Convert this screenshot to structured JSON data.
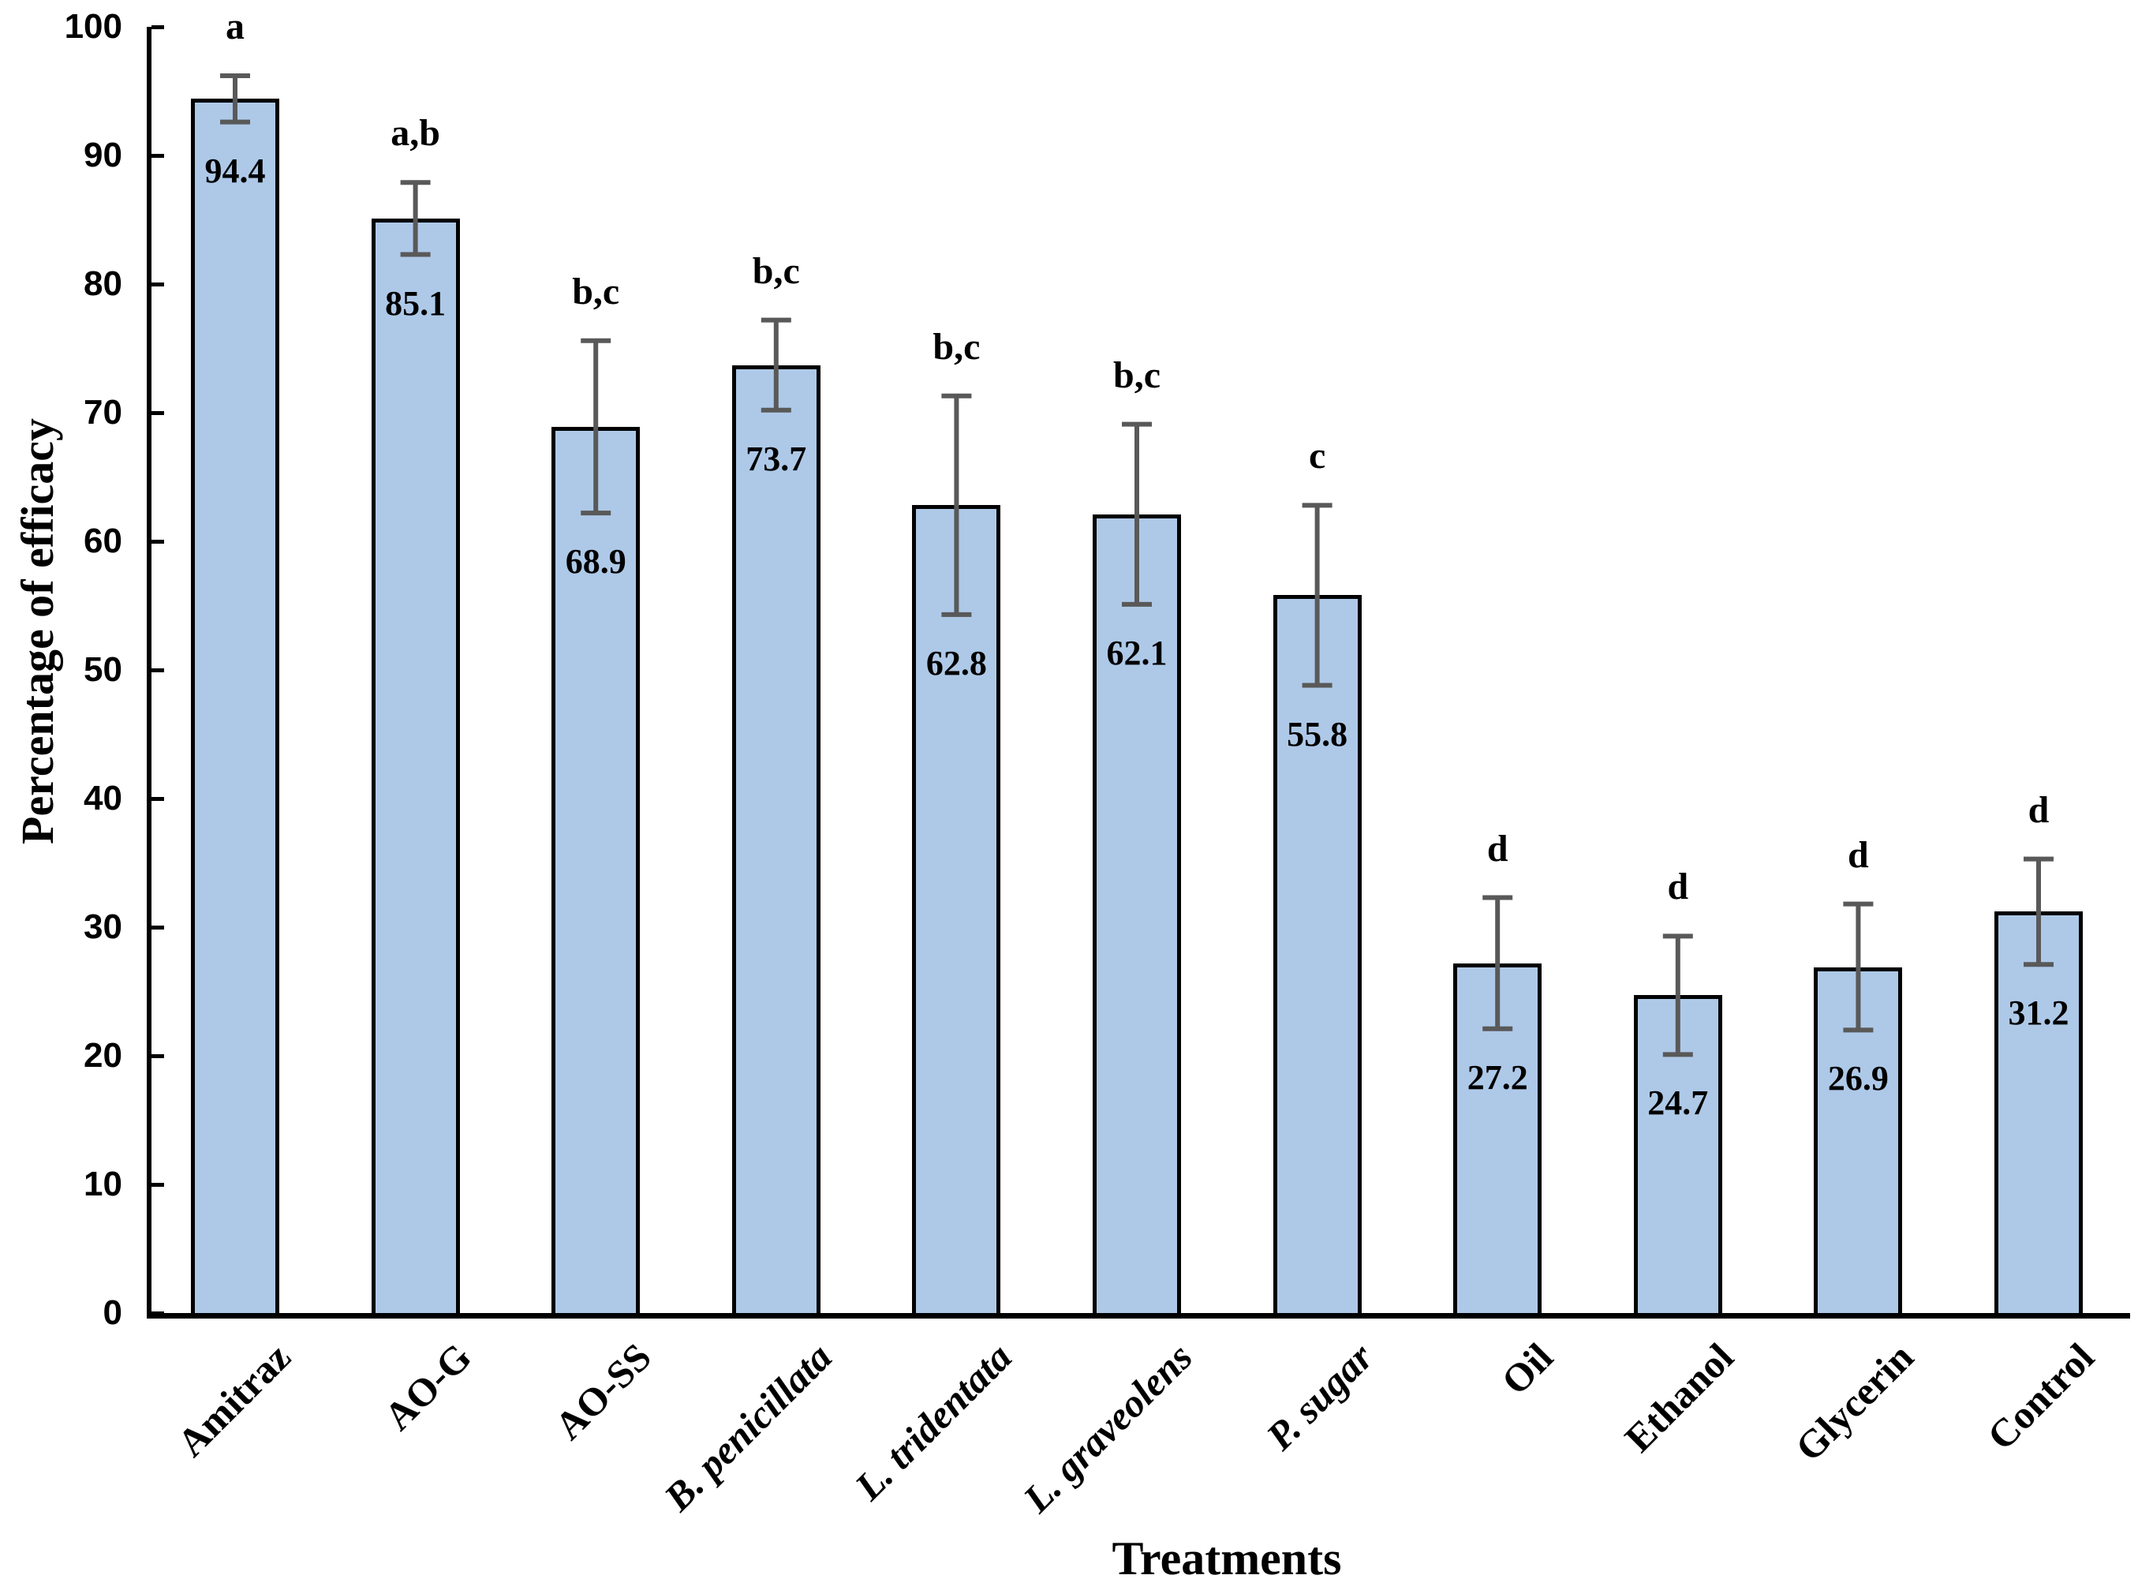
{
  "chart_data": {
    "type": "bar",
    "title": "",
    "xlabel": "Treatments",
    "ylabel": "Percentage of efficacy",
    "ylim": [
      0,
      100
    ],
    "ytick_step": 10,
    "ytick_labels": [
      "0",
      "10",
      "20",
      "30",
      "40",
      "50",
      "60",
      "70",
      "80",
      "90",
      "100"
    ],
    "grid": false,
    "legend": false,
    "categories": [
      "Amitraz",
      "AO-G",
      "AO-SS",
      "B. penicillata",
      "L. tridentata",
      "L. graveolens",
      "P. sugar",
      "Oil",
      "Ethanol",
      "Glycerin",
      "Control"
    ],
    "categories_italic": [
      false,
      false,
      false,
      true,
      true,
      true,
      true,
      false,
      false,
      false,
      false
    ],
    "values": [
      94.4,
      85.1,
      68.9,
      73.7,
      62.8,
      62.1,
      55.8,
      27.2,
      24.7,
      26.9,
      31.2
    ],
    "value_labels": [
      "94.4",
      "85.1",
      "68.9",
      "73.7",
      "62.8",
      "62.1",
      "55.8",
      "27.2",
      "24.7",
      "26.9",
      "31.2"
    ],
    "error_bars": [
      1.8,
      2.8,
      6.7,
      3.5,
      8.5,
      7.0,
      7.0,
      5.1,
      4.6,
      4.9,
      4.1
    ],
    "sig_letters": [
      "a",
      "a,b",
      "b,c",
      "b,c",
      "b,c",
      "b,c",
      "c",
      "d",
      "d",
      "d",
      "d"
    ]
  },
  "styles": {
    "bar_fill": "#aec9e8",
    "bar_border": "#000000",
    "error_bar_color": "#595959",
    "axis_color": "#000000",
    "text_color": "#000000",
    "background": "#ffffff"
  }
}
